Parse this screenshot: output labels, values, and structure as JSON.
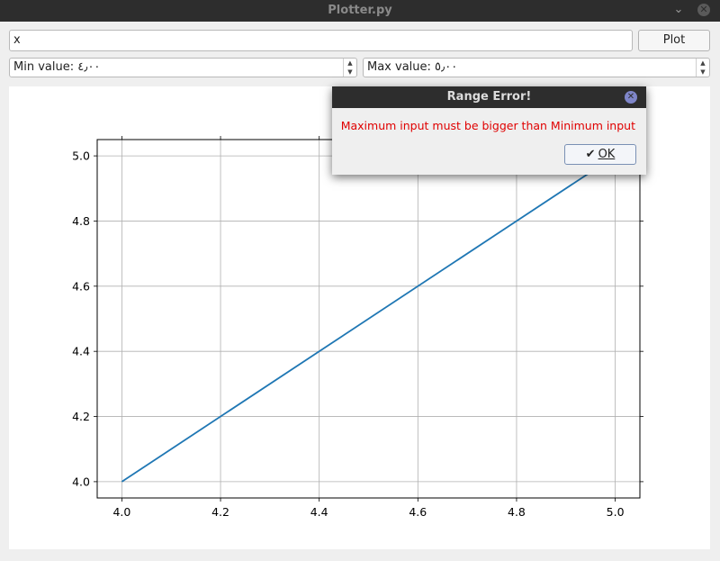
{
  "window": {
    "title": "Plotter.py",
    "minimize_glyph": "⌄",
    "close_glyph": "✕"
  },
  "toolbar": {
    "expression_value": "x",
    "plot_label": "Plot",
    "min_label": "Min value: ٤٫٠٠",
    "max_label": "Max value: ٥٫٠٠"
  },
  "dialog": {
    "title": "Range Error!",
    "message": "Maximum input must be bigger than Minimum input",
    "ok_label": "OK",
    "close_glyph": "✕"
  },
  "colors": {
    "line": "#1f77b4",
    "error_text": "#e00000",
    "titlebar": "#2d2d2d"
  },
  "chart_data": {
    "type": "line",
    "series": [
      {
        "x": [
          4.0,
          5.0
        ],
        "y": [
          4.0,
          5.0
        ]
      }
    ],
    "xlim": [
      3.95,
      5.05
    ],
    "ylim": [
      3.95,
      5.05
    ],
    "xticks": [
      "4.0",
      "4.2",
      "4.4",
      "4.6",
      "4.8",
      "5.0"
    ],
    "yticks": [
      "4.0",
      "4.2",
      "4.4",
      "4.6",
      "4.8",
      "5.0"
    ],
    "grid": true
  }
}
